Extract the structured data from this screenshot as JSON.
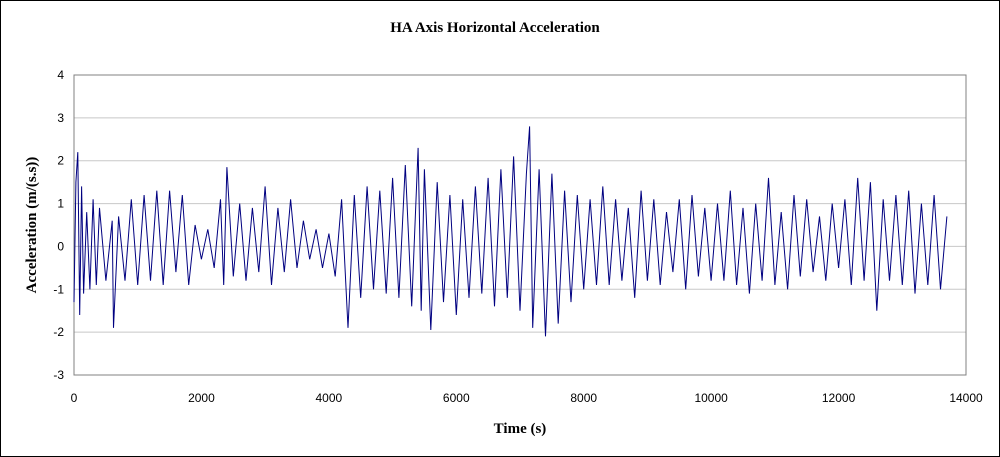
{
  "chart_data": {
    "type": "line",
    "title": "HA Axis Horizontal Acceleration",
    "xlabel": "Time (s)",
    "ylabel": "Acceleration (m/(s.s))",
    "xlim": [
      0,
      14000
    ],
    "ylim": [
      -3,
      4
    ],
    "x_ticks": [
      "0",
      "2000",
      "4000",
      "6000",
      "8000",
      "10000",
      "12000",
      "14000"
    ],
    "y_ticks": [
      "4",
      "3",
      "2",
      "1",
      "0",
      "-1",
      "-2",
      "-3"
    ],
    "grid": "horizontal",
    "legend": "none",
    "series": [
      {
        "color": "#000080",
        "x": [
          0,
          30,
          60,
          90,
          120,
          150,
          200,
          250,
          300,
          350,
          400,
          500,
          600,
          620,
          700,
          800,
          900,
          1000,
          1100,
          1200,
          1300,
          1400,
          1500,
          1600,
          1700,
          1800,
          1900,
          2000,
          2100,
          2200,
          2300,
          2350,
          2400,
          2500,
          2600,
          2700,
          2800,
          2900,
          3000,
          3100,
          3200,
          3300,
          3400,
          3500,
          3600,
          3700,
          3800,
          3900,
          4000,
          4100,
          4200,
          4300,
          4400,
          4500,
          4600,
          4700,
          4800,
          4900,
          5000,
          5100,
          5200,
          5300,
          5400,
          5450,
          5500,
          5600,
          5700,
          5800,
          5900,
          6000,
          6100,
          6200,
          6300,
          6400,
          6500,
          6600,
          6700,
          6800,
          6900,
          7000,
          7100,
          7150,
          7200,
          7300,
          7400,
          7500,
          7600,
          7700,
          7800,
          7900,
          8000,
          8100,
          8200,
          8300,
          8400,
          8500,
          8600,
          8700,
          8800,
          8900,
          9000,
          9100,
          9200,
          9300,
          9400,
          9500,
          9600,
          9700,
          9800,
          9900,
          10000,
          10100,
          10200,
          10300,
          10400,
          10500,
          10600,
          10700,
          10800,
          10900,
          11000,
          11100,
          11200,
          11300,
          11400,
          11500,
          11600,
          11700,
          11800,
          11900,
          12000,
          12100,
          12200,
          12300,
          12400,
          12500,
          12600,
          12700,
          12800,
          12900,
          13000,
          13100,
          13200,
          13300,
          13400,
          13500,
          13600,
          13700
        ],
        "y": [
          -1.3,
          1.5,
          2.2,
          -1.6,
          1.4,
          -1.1,
          0.8,
          -1.0,
          1.1,
          -0.9,
          0.9,
          -0.8,
          0.6,
          -1.9,
          0.7,
          -0.8,
          1.1,
          -0.9,
          1.2,
          -0.8,
          1.3,
          -0.9,
          1.3,
          -0.6,
          1.2,
          -0.9,
          0.5,
          -0.3,
          0.4,
          -0.5,
          1.1,
          -0.9,
          1.85,
          -0.7,
          1.0,
          -0.8,
          0.9,
          -0.6,
          1.4,
          -0.9,
          0.9,
          -0.6,
          1.1,
          -0.5,
          0.6,
          -0.3,
          0.4,
          -0.5,
          0.3,
          -0.7,
          1.1,
          -1.9,
          1.2,
          -1.2,
          1.4,
          -1.0,
          1.3,
          -1.1,
          1.6,
          -1.2,
          1.9,
          -1.4,
          2.3,
          -1.5,
          1.8,
          -1.95,
          1.5,
          -1.3,
          1.2,
          -1.6,
          1.1,
          -1.2,
          1.4,
          -1.1,
          1.6,
          -1.4,
          1.8,
          -1.2,
          2.1,
          -1.5,
          1.7,
          2.8,
          -1.9,
          1.8,
          -2.1,
          1.7,
          -1.8,
          1.3,
          -1.3,
          1.2,
          -1.0,
          1.1,
          -0.9,
          1.4,
          -0.9,
          1.1,
          -0.8,
          0.9,
          -1.2,
          1.3,
          -0.8,
          1.1,
          -0.9,
          0.8,
          -0.6,
          1.1,
          -1.0,
          1.2,
          -0.7,
          0.9,
          -0.8,
          1.0,
          -0.8,
          1.3,
          -0.9,
          0.9,
          -1.1,
          1.0,
          -0.8,
          1.6,
          -0.9,
          0.8,
          -1.0,
          1.2,
          -0.7,
          1.1,
          -0.6,
          0.7,
          -0.8,
          1.0,
          -0.5,
          1.1,
          -0.9,
          1.6,
          -0.8,
          1.5,
          -1.5,
          1.1,
          -0.8,
          1.2,
          -0.9,
          1.3,
          -1.1,
          1.0,
          -0.9,
          1.2,
          -1.0,
          0.7
        ]
      }
    ]
  }
}
